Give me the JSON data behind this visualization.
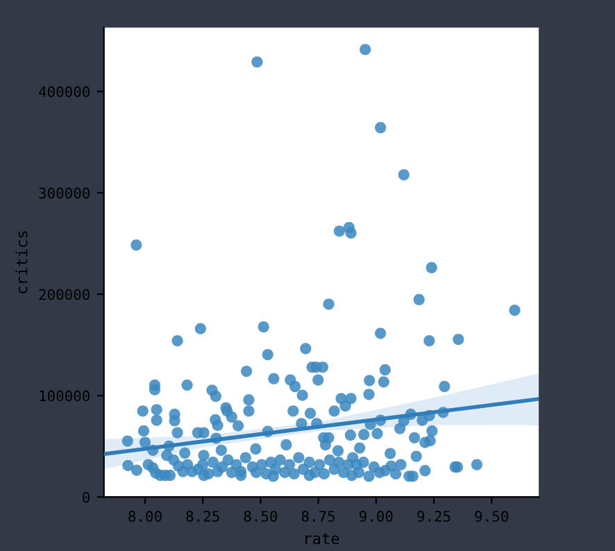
{
  "chart_data": {
    "type": "scatter",
    "xlabel": "rate",
    "ylabel": "critics",
    "xlim": [
      7.822,
      9.704
    ],
    "ylim": [
      0,
      463000
    ],
    "xticks": [
      {
        "value": 8.0,
        "label": "8.00"
      },
      {
        "value": 8.25,
        "label": "8.25"
      },
      {
        "value": 8.5,
        "label": "8.50"
      },
      {
        "value": 8.75,
        "label": "8.75"
      },
      {
        "value": 9.0,
        "label": "9.00"
      },
      {
        "value": 9.25,
        "label": "9.25"
      },
      {
        "value": 9.5,
        "label": "9.50"
      }
    ],
    "yticks": [
      0,
      100000,
      200000,
      300000,
      400000
    ],
    "grid": false,
    "series": [
      {
        "marker": "circle",
        "color": "#3a87c0",
        "x": [
          8.485,
          8.953,
          9.019,
          9.12,
          7.962,
          8.841,
          8.883,
          8.891,
          9.24,
          9.186,
          8.795,
          9.6,
          8.513,
          8.24,
          9.019,
          8.14,
          9.23,
          9.356,
          8.531,
          8.695,
          8.723,
          8.741,
          8.769,
          8.439,
          9.039,
          8.557,
          8.629,
          8.649,
          8.749,
          8.971,
          9.033,
          8.042,
          8.042,
          8.182,
          9.296,
          8.29,
          8.306,
          8.969,
          8.449,
          8.449,
          8.849,
          8.891,
          8.681,
          7.99,
          8.05,
          8.128,
          8.128,
          8.05,
          8.35,
          8.355,
          8.641,
          8.819,
          8.867,
          8.715,
          9.29,
          8.375,
          8.304,
          8.314,
          8.403,
          8.677,
          8.743,
          9.15,
          9.231,
          9.2,
          9.019,
          9.12,
          8.975,
          7.994,
          8.14,
          8.228,
          8.254,
          8.531,
          9.242,
          9.103,
          8.947,
          9.005,
          8.0,
          7.924,
          8.308,
          8.611,
          8.773,
          8.795,
          9.166,
          8.889,
          9.212,
          9.234,
          8.034,
          8.104,
          8.479,
          8.33,
          8.781,
          8.929,
          9.174,
          9.061,
          8.835,
          8.254,
          8.172,
          8.094,
          7.926,
          7.964,
          8.014,
          8.034,
          8.046,
          8.066,
          8.088,
          8.108,
          8.124,
          8.144,
          8.164,
          8.184,
          8.204,
          8.23,
          8.25,
          8.274,
          8.294,
          8.314,
          8.334,
          8.359,
          8.375,
          8.395,
          8.415,
          8.435,
          8.465,
          8.481,
          8.505,
          8.525,
          8.545,
          8.565,
          8.585,
          8.605,
          8.625,
          8.645,
          8.665,
          8.685,
          8.711,
          8.735,
          8.755,
          8.775,
          8.799,
          8.819,
          8.839,
          8.859,
          8.879,
          8.899,
          8.925,
          8.945,
          8.969,
          8.991,
          9.015,
          9.039,
          9.065,
          9.085,
          9.107,
          9.143,
          9.159,
          9.212,
          9.342,
          9.352,
          9.436,
          8.895,
          8.915,
          8.711,
          8.555,
          8.415,
          8.254
        ],
        "values": [
          429100,
          441400,
          364300,
          317800,
          248500,
          262200,
          265800,
          260400,
          226200,
          194700,
          190200,
          184200,
          167800,
          166000,
          161400,
          154100,
          154100,
          155500,
          140400,
          146400,
          128100,
          128100,
          128100,
          124000,
          125400,
          116700,
          115400,
          109000,
          115400,
          114900,
          113500,
          110400,
          105800,
          110400,
          109000,
          105300,
          99400,
          101200,
          95800,
          84800,
          97100,
          97100,
          100300,
          84800,
          86200,
          81600,
          75200,
          75700,
          88000,
          84800,
          84800,
          84800,
          89800,
          82500,
          83400,
          78900,
          76200,
          70700,
          70200,
          72500,
          72500,
          81600,
          80300,
          75700,
          75700,
          75200,
          71600,
          65200,
          63400,
          63400,
          63400,
          64700,
          65200,
          67500,
          61600,
          62500,
          53800,
          55200,
          57900,
          51500,
          58400,
          58400,
          58400,
          61100,
          53800,
          55600,
          46100,
          50200,
          47400,
          46100,
          51500,
          48300,
          40100,
          42900,
          45600,
          41000,
          43300,
          41000,
          31000,
          26400,
          31900,
          28700,
          23700,
          21400,
          21400,
          21400,
          36500,
          30600,
          25100,
          31900,
          25100,
          27400,
          31900,
          22800,
          34200,
          25100,
          29600,
          36500,
          24200,
          31900,
          25100,
          38800,
          29600,
          24200,
          31900,
          22800,
          34200,
          27400,
          36500,
          24200,
          31900,
          22800,
          38800,
          27400,
          34200,
          24200,
          31900,
          22800,
          36500,
          27400,
          34200,
          24200,
          31900,
          38800,
          24200,
          34200,
          20500,
          29600,
          24200,
          26000,
          30600,
          22800,
          31900,
          20500,
          20500,
          26000,
          29600,
          29600,
          31900,
          21400,
          31900,
          21400,
          20500,
          21400,
          21400
        ]
      },
      {
        "type": "line",
        "marker": "none",
        "color": "#2f7dbb",
        "x": [
          7.822,
          8.25,
          8.75,
          9.25,
          9.704
        ],
        "values": [
          42400,
          54800,
          69200,
          83600,
          96700
        ],
        "lower": [
          27400,
          49000,
          65000,
          71000,
          70700
        ],
        "upper": [
          57000,
          60500,
          74000,
          98000,
          121800
        ]
      }
    ]
  }
}
